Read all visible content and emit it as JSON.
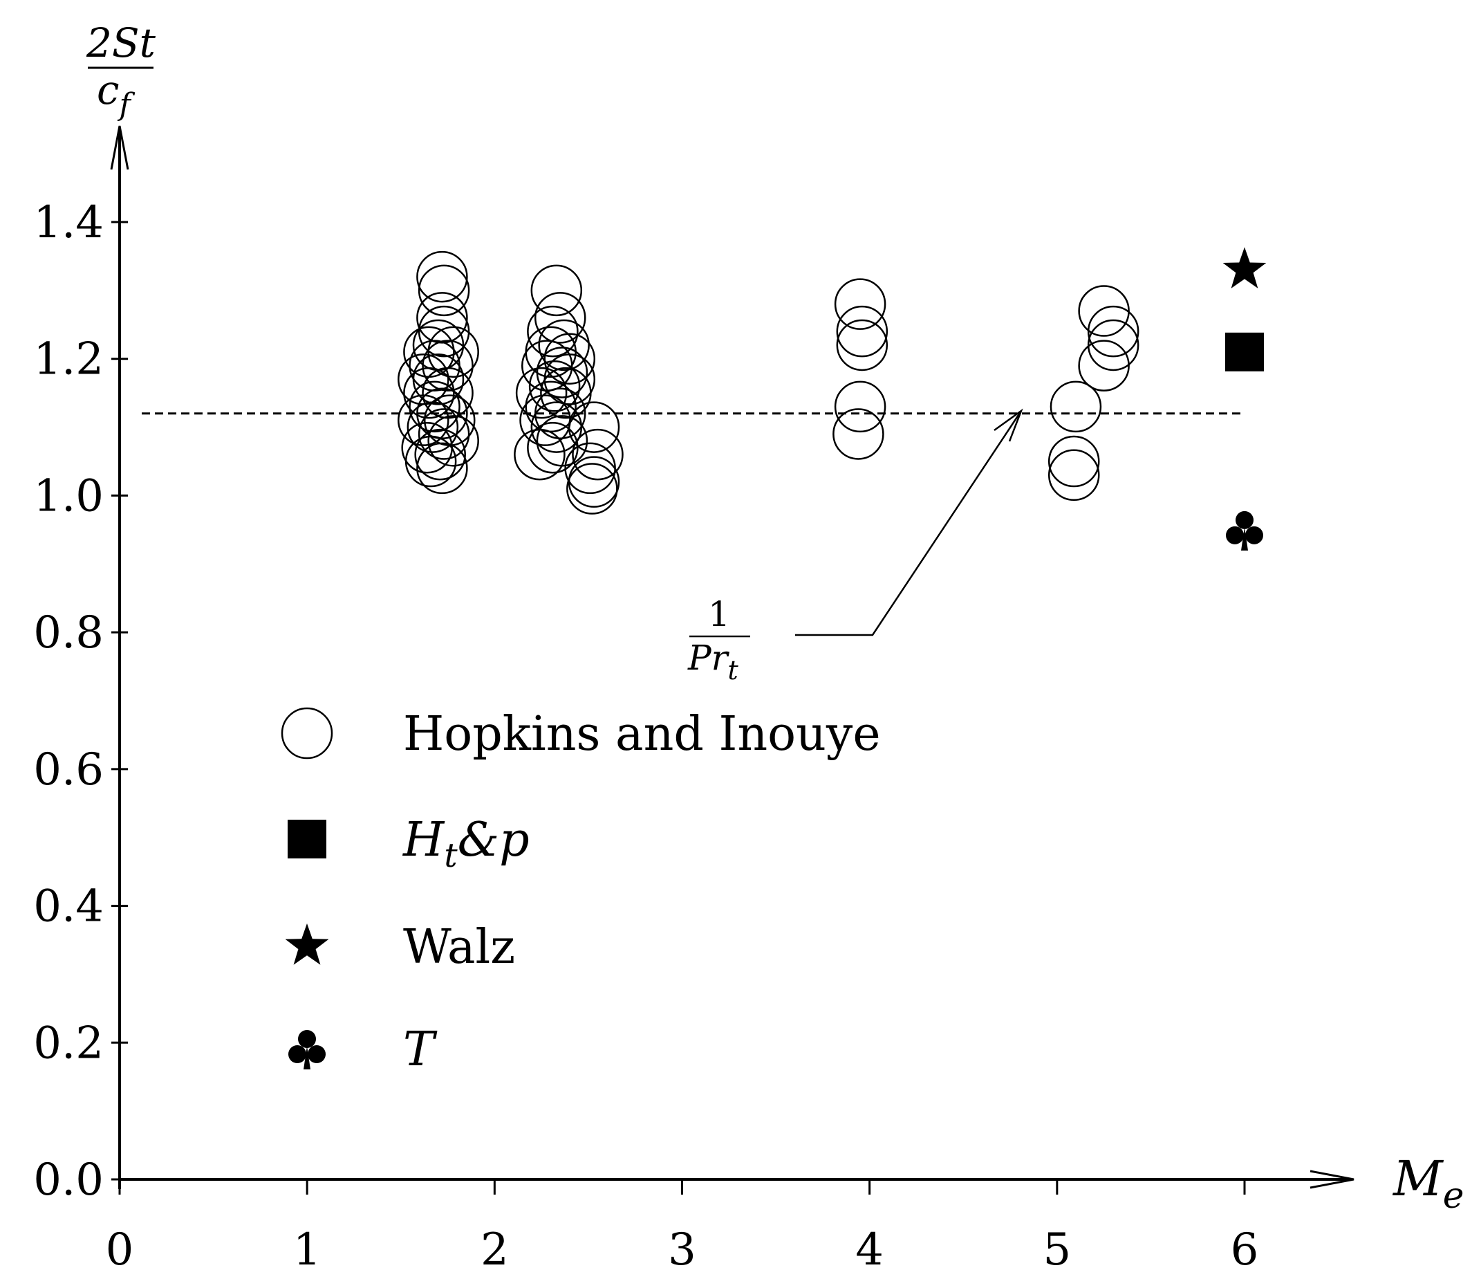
{
  "chart_data": {
    "type": "scatter",
    "title": "",
    "xlabel": "M",
    "xlabel_sub": "e",
    "ylabel_num": "2St",
    "ylabel_den": "c",
    "ylabel_den_sub": "f",
    "xlim": [
      0,
      6
    ],
    "ylim": [
      0,
      1.4
    ],
    "xticks": [
      "0",
      "1",
      "2",
      "3",
      "4",
      "5",
      "6"
    ],
    "yticks": [
      "0.0",
      "0.2",
      "0.4",
      "0.6",
      "0.8",
      "1.0",
      "1.2",
      "1.4"
    ],
    "grid": false,
    "legend_position": "center-left",
    "reference_line": {
      "y": 1.12,
      "style": "dashed",
      "label_num": "1",
      "label_den": "Pr",
      "label_den_sub": "t"
    },
    "series": [
      {
        "name": "Hopkins and Inouye",
        "marker": "circle-open",
        "points": [
          [
            1.72,
            1.32
          ],
          [
            1.73,
            1.3
          ],
          [
            1.72,
            1.26
          ],
          [
            1.73,
            1.24
          ],
          [
            1.7,
            1.22
          ],
          [
            1.65,
            1.21
          ],
          [
            1.78,
            1.21
          ],
          [
            1.68,
            1.19
          ],
          [
            1.75,
            1.19
          ],
          [
            1.62,
            1.17
          ],
          [
            1.7,
            1.17
          ],
          [
            1.65,
            1.15
          ],
          [
            1.75,
            1.15
          ],
          [
            1.68,
            1.13
          ],
          [
            1.72,
            1.12
          ],
          [
            1.62,
            1.11
          ],
          [
            1.76,
            1.11
          ],
          [
            1.67,
            1.1
          ],
          [
            1.73,
            1.09
          ],
          [
            1.78,
            1.08
          ],
          [
            1.64,
            1.07
          ],
          [
            1.71,
            1.06
          ],
          [
            1.66,
            1.05
          ],
          [
            1.72,
            1.04
          ],
          [
            2.33,
            1.3
          ],
          [
            2.35,
            1.26
          ],
          [
            2.31,
            1.24
          ],
          [
            2.37,
            1.22
          ],
          [
            2.3,
            1.21
          ],
          [
            2.4,
            1.2
          ],
          [
            2.28,
            1.19
          ],
          [
            2.36,
            1.18
          ],
          [
            2.4,
            1.17
          ],
          [
            2.32,
            1.16
          ],
          [
            2.25,
            1.15
          ],
          [
            2.38,
            1.15
          ],
          [
            2.3,
            1.13
          ],
          [
            2.35,
            1.12
          ],
          [
            2.27,
            1.11
          ],
          [
            2.33,
            1.1
          ],
          [
            2.36,
            1.08
          ],
          [
            2.31,
            1.07
          ],
          [
            2.24,
            1.06
          ],
          [
            2.53,
            1.1
          ],
          [
            2.55,
            1.06
          ],
          [
            2.51,
            1.04
          ],
          [
            2.53,
            1.02
          ],
          [
            2.52,
            1.01
          ],
          [
            3.95,
            1.28
          ],
          [
            3.96,
            1.24
          ],
          [
            3.96,
            1.22
          ],
          [
            3.95,
            1.13
          ],
          [
            3.94,
            1.09
          ],
          [
            5.25,
            1.27
          ],
          [
            5.3,
            1.24
          ],
          [
            5.3,
            1.22
          ],
          [
            5.25,
            1.19
          ],
          [
            5.1,
            1.13
          ],
          [
            5.09,
            1.05
          ],
          [
            5.09,
            1.03
          ]
        ]
      },
      {
        "name": "H_t&p",
        "marker": "square-filled",
        "points": [
          [
            6.0,
            1.21
          ]
        ]
      },
      {
        "name": "Walz",
        "marker": "star-filled",
        "points": [
          [
            6.0,
            1.33
          ]
        ]
      },
      {
        "name": "T",
        "marker": "club-filled",
        "points": [
          [
            6.0,
            0.95
          ]
        ]
      }
    ],
    "legend": [
      {
        "marker": "circle-open",
        "text": "Hopkins and Inouye",
        "italic": false
      },
      {
        "marker": "square-filled",
        "text": "H",
        "sub": "t",
        "rest": "&p",
        "italic": true
      },
      {
        "marker": "star-filled",
        "text": "Walz",
        "italic": false
      },
      {
        "marker": "club-filled",
        "text": "T",
        "italic": true
      }
    ]
  }
}
